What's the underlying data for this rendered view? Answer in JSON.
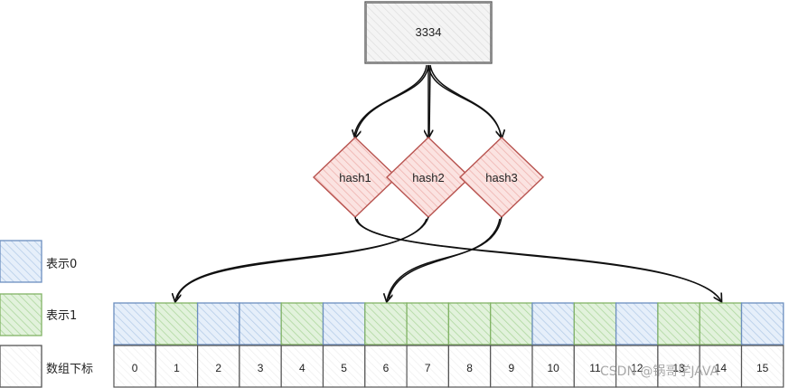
{
  "input_value": "3334",
  "hash_functions": [
    "hash1",
    "hash2",
    "hash3"
  ],
  "legend": [
    {
      "label": "表示0",
      "fill": "#dce8f6",
      "stroke": "#6c8ebf"
    },
    {
      "label": "表示1",
      "fill": "#d5ebcf",
      "stroke": "#82b366"
    },
    {
      "label": "数组下标",
      "fill": "#ffffff",
      "stroke": "#555555"
    }
  ],
  "bit_array": [
    0,
    1,
    0,
    0,
    1,
    0,
    1,
    1,
    1,
    1,
    0,
    1,
    0,
    1,
    1,
    0
  ],
  "indices": [
    "0",
    "1",
    "2",
    "3",
    "4",
    "5",
    "6",
    "7",
    "8",
    "9",
    "10",
    "11",
    "12",
    "13",
    "14",
    "15"
  ],
  "mappings": [
    {
      "hash": "hash1",
      "index": 14
    },
    {
      "hash": "hash2",
      "index": 1
    },
    {
      "hash": "hash3",
      "index": 6
    }
  ],
  "colors": {
    "zero_fill": "#dce8f6",
    "zero_stroke": "#6c8ebf",
    "one_fill": "#d5ebcf",
    "one_stroke": "#82b366",
    "hash_fill": "#f8cecc",
    "hash_stroke": "#b85450",
    "box_stroke": "#555555"
  },
  "watermark": "CSDN @锅哥学JAVA"
}
